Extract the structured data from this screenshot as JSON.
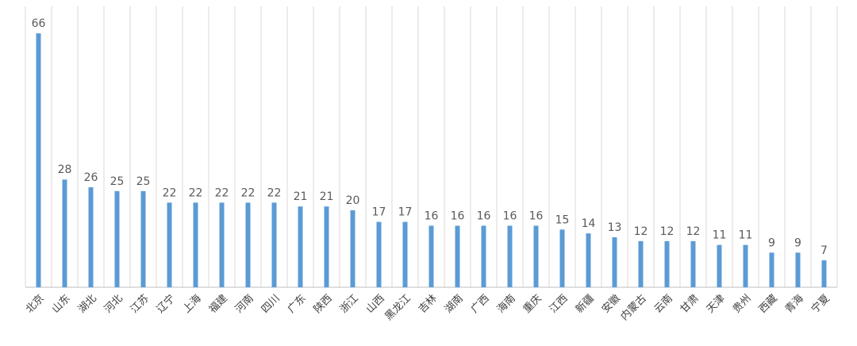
{
  "chart_data": {
    "type": "bar",
    "categories": [
      "北京",
      "山东",
      "湖北",
      "河北",
      "江苏",
      "辽宁",
      "上海",
      "福建",
      "河南",
      "四川",
      "广东",
      "陕西",
      "浙江",
      "山西",
      "黑龙江",
      "吉林",
      "湖南",
      "广西",
      "海南",
      "重庆",
      "江西",
      "新疆",
      "安徽",
      "内蒙古",
      "云南",
      "甘肃",
      "天津",
      "贵州",
      "西藏",
      "青海",
      "宁夏"
    ],
    "values": [
      66,
      28,
      26,
      25,
      25,
      22,
      22,
      22,
      22,
      22,
      21,
      21,
      20,
      17,
      17,
      16,
      16,
      16,
      16,
      16,
      15,
      14,
      13,
      12,
      12,
      12,
      11,
      11,
      9,
      9,
      7
    ],
    "color": "#5b9bd5",
    "grid": "vertical"
  }
}
